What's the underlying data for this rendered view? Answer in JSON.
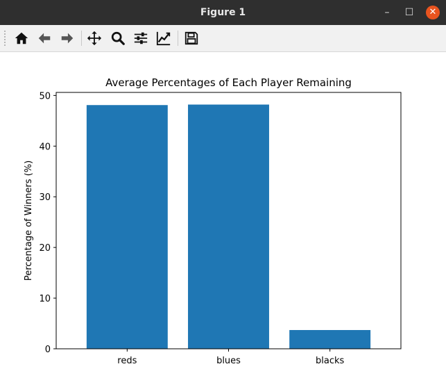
{
  "window": {
    "title": "Figure 1",
    "controls": {
      "minimize": "–",
      "maximize": "☐",
      "close": "✕"
    },
    "close_color": "#e9541f"
  },
  "toolbar": {
    "buttons": [
      {
        "name": "home",
        "icon": "home-icon"
      },
      {
        "name": "back",
        "icon": "arrow-left-icon"
      },
      {
        "name": "forward",
        "icon": "arrow-right-icon"
      },
      {
        "name": "pan",
        "icon": "move-icon"
      },
      {
        "name": "zoom",
        "icon": "magnifier-icon"
      },
      {
        "name": "configure-subplots",
        "icon": "sliders-icon"
      },
      {
        "name": "edit-axis",
        "icon": "line-chart-icon"
      },
      {
        "name": "save",
        "icon": "floppy-disk-icon"
      }
    ]
  },
  "chart_data": {
    "type": "bar",
    "title": "Average Percentages of Each Player Remaining",
    "xlabel": "",
    "ylabel": "Percentage of Winners (%)",
    "categories": [
      "reds",
      "blues",
      "blacks"
    ],
    "values": [
      48.1,
      48.2,
      3.7
    ],
    "ylim": [
      0,
      50.6
    ],
    "yticks": [
      0,
      10,
      20,
      30,
      40,
      50
    ],
    "bar_color": "#1f77b4",
    "grid": false,
    "legend": "none"
  }
}
